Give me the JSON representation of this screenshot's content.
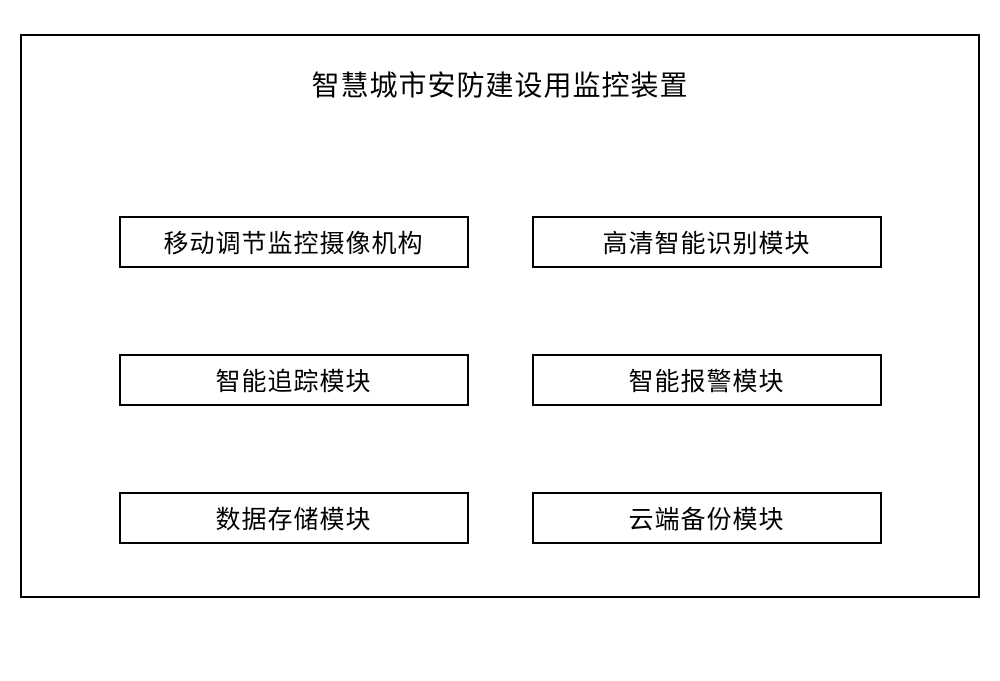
{
  "diagram": {
    "type": "block-diagram",
    "title": "智慧城市安防建设用监控装置",
    "title_fontsize": 28,
    "module_fontsize": 25,
    "background_color": "#ffffff",
    "border_color": "#000000",
    "border_width": 2,
    "text_color": "#000000",
    "layout": {
      "container_width": 960,
      "container_height": 564,
      "module_box_width": 350,
      "module_box_height": 52,
      "grid_columns": 2,
      "grid_rows": 3,
      "row_gap": 86
    },
    "modules": [
      {
        "label": "移动调节监控摄像机构",
        "row": 0,
        "col": 0
      },
      {
        "label": "高清智能识别模块",
        "row": 0,
        "col": 1
      },
      {
        "label": "智能追踪模块",
        "row": 1,
        "col": 0
      },
      {
        "label": "智能报警模块",
        "row": 1,
        "col": 1
      },
      {
        "label": "数据存储模块",
        "row": 2,
        "col": 0
      },
      {
        "label": "云端备份模块",
        "row": 2,
        "col": 1
      }
    ]
  }
}
